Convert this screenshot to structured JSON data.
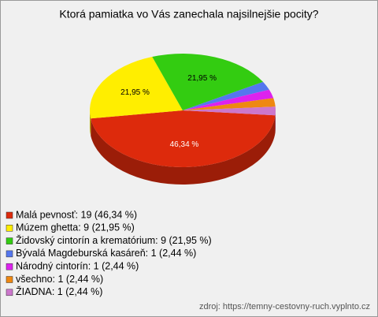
{
  "chart_data": {
    "type": "pie3d",
    "title": "Ktorá pamiatka vo Vás zanechala najsilnejšie pocity?",
    "categories": [
      "Malá pevnosť",
      "Múzem ghetta",
      "Židovský cintorín a krematórium",
      "Bývalá Magdeburská kasáreň",
      "Národný cintorín",
      "všechno",
      "ŽIADNA"
    ],
    "values": [
      46.34,
      21.95,
      21.95,
      2.44,
      2.44,
      2.44,
      2.44
    ],
    "value_labels": [
      "46,34 %",
      "21,95 %",
      "21,95 %",
      null,
      null,
      null,
      null
    ],
    "colors": [
      "#dd2a0c",
      "#ffee00",
      "#33cc11",
      "#5577ee",
      "#dd22ee",
      "#ee8811",
      "#cc77cc"
    ],
    "legend": [
      "Malá pevnosť: 19 (46,34 %)",
      "Múzem ghetta: 9 (21,95 %)",
      "Židovský cintorín a krematórium: 9 (21,95 %)",
      "Bývalá Magdeburská kasáreň: 1 (2,44 %)",
      "Národný cintorín: 1 (2,44 %)",
      "všechno: 1 (2,44 %)",
      "ŽIADNA: 1 (2,44 %)"
    ],
    "source": "zdroj: https://temny-cestovny-ruch.vyplnto.cz"
  }
}
